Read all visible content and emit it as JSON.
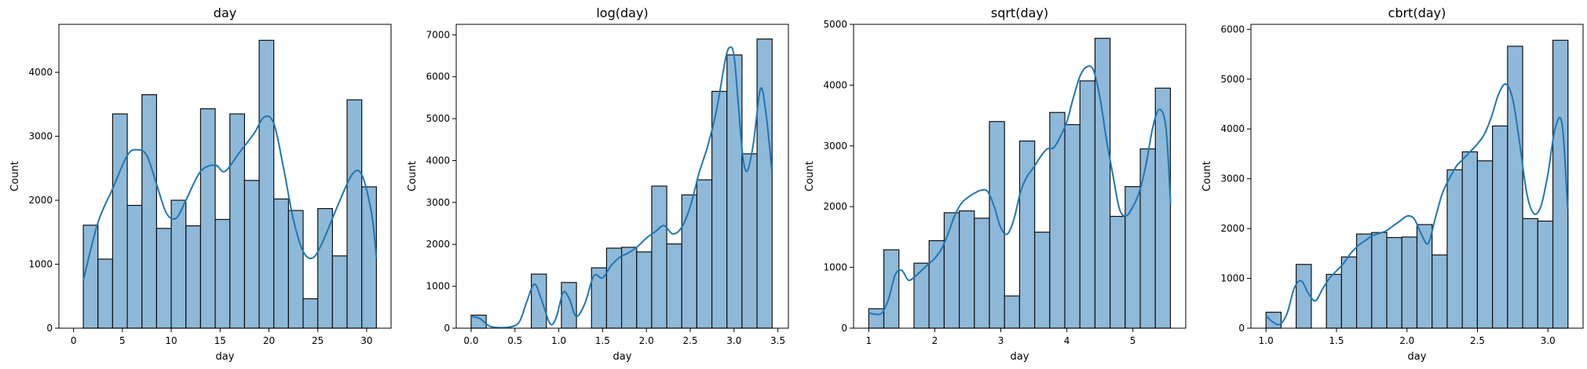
{
  "colors": {
    "bar_fill": "#8fb9d9",
    "bar_edge": "#111111",
    "kde_line": "#1f77b4",
    "frame": "#000000"
  },
  "chart_data": [
    {
      "type": "bar",
      "title": "day",
      "xlabel": "day",
      "ylabel": "Count",
      "xlim": [
        -1.5,
        32.5
      ],
      "ylim": [
        0,
        4750
      ],
      "xticks": [
        0,
        5,
        10,
        15,
        20,
        25,
        30
      ],
      "yticks": [
        0,
        1000,
        2000,
        3000,
        4000
      ],
      "bin_edges": [
        1.0,
        2.5,
        4.0,
        5.5,
        7.0,
        8.5,
        10.0,
        11.5,
        13.0,
        14.5,
        16.0,
        17.5,
        19.0,
        20.5,
        22.0,
        23.5,
        25.0,
        26.5,
        28.0,
        29.5,
        31.0
      ],
      "values": [
        1610,
        1080,
        3350,
        1920,
        3650,
        1560,
        2000,
        1600,
        3430,
        1700,
        3350,
        2310,
        4500,
        2020,
        1840,
        460,
        1870,
        1130,
        3570,
        2210
      ],
      "kde": {
        "x": [
          1,
          2.5,
          4,
          5.5,
          6.5,
          7.5,
          8.5,
          9.5,
          10.5,
          11.5,
          13,
          14.5,
          15.5,
          17,
          18.5,
          19.5,
          20.5,
          21.5,
          22.5,
          23.5,
          24.5,
          25.5,
          27,
          28.5,
          29.5,
          30.5,
          31
        ],
        "y": [
          750,
          1650,
          2180,
          2700,
          2790,
          2700,
          2250,
          1800,
          1720,
          2000,
          2450,
          2550,
          2450,
          2750,
          3050,
          3300,
          3200,
          2500,
          1700,
          1200,
          1100,
          1350,
          1900,
          2400,
          2400,
          1800,
          1100
        ]
      }
    },
    {
      "type": "bar",
      "title": "log(day)",
      "xlabel": "day",
      "ylabel": "Count",
      "xlim": [
        -0.17,
        3.62
      ],
      "ylim": [
        0,
        7250
      ],
      "xticks": [
        0.0,
        0.5,
        1.0,
        1.5,
        2.0,
        2.5,
        3.0,
        3.5
      ],
      "xtick_labels": [
        "0.0",
        "0.5",
        "1.0",
        "1.5",
        "2.0",
        "2.5",
        "3.0",
        "3.5"
      ],
      "yticks": [
        0,
        1000,
        2000,
        3000,
        4000,
        5000,
        6000,
        7000
      ],
      "bin_edges": [
        0.0,
        0.1717,
        0.3434,
        0.5151,
        0.6868,
        0.8585,
        1.0302,
        1.2019,
        1.3736,
        1.5453,
        1.717,
        1.8887,
        2.0604,
        2.2321,
        2.4038,
        2.5755,
        2.7472,
        2.9189,
        3.0906,
        3.2623,
        3.434
      ],
      "values": [
        310,
        0,
        0,
        0,
        1290,
        0,
        1090,
        0,
        1440,
        1910,
        1930,
        1820,
        3390,
        2010,
        3180,
        3540,
        5650,
        6520,
        4160,
        6900
      ],
      "kde": {
        "x": [
          0.0,
          0.1,
          0.2,
          0.3,
          0.45,
          0.55,
          0.63,
          0.72,
          0.8,
          0.9,
          0.97,
          1.05,
          1.12,
          1.2,
          1.3,
          1.4,
          1.5,
          1.6,
          1.7,
          1.8,
          1.9,
          2.0,
          2.1,
          2.2,
          2.3,
          2.4,
          2.5,
          2.6,
          2.7,
          2.8,
          2.9,
          2.95,
          3.0,
          3.05,
          3.1,
          3.15,
          3.22,
          3.3,
          3.36,
          3.43
        ],
        "y": [
          280,
          230,
          60,
          15,
          30,
          150,
          600,
          1050,
          700,
          110,
          250,
          850,
          700,
          280,
          600,
          1250,
          1200,
          1500,
          1700,
          1800,
          1950,
          2150,
          2300,
          2450,
          2250,
          2400,
          2900,
          3700,
          4350,
          5200,
          6400,
          6700,
          6500,
          5300,
          4100,
          3750,
          4400,
          5700,
          5200,
          3800
        ]
      }
    },
    {
      "type": "bar",
      "title": "sqrt(day)",
      "xlabel": "day",
      "ylabel": "Count",
      "xlim": [
        0.77,
        5.8
      ],
      "ylim": [
        0,
        5000
      ],
      "xticks": [
        1,
        2,
        3,
        4,
        5
      ],
      "yticks": [
        0,
        1000,
        2000,
        3000,
        4000,
        5000
      ],
      "bin_edges": [
        1.0,
        1.2284,
        1.4568,
        1.6852,
        1.9136,
        2.142,
        2.3704,
        2.5988,
        2.8272,
        3.0556,
        3.284,
        3.5124,
        3.7408,
        3.9692,
        4.1976,
        4.426,
        4.6544,
        4.8828,
        5.1112,
        5.3396,
        5.568
      ],
      "values": [
        320,
        1290,
        0,
        1070,
        1440,
        1900,
        1930,
        1810,
        3400,
        530,
        3080,
        1580,
        3550,
        3350,
        4070,
        4770,
        1840,
        2330,
        2950,
        3950
      ],
      "kde": {
        "x": [
          1.0,
          1.1,
          1.2,
          1.3,
          1.4,
          1.5,
          1.6,
          1.7,
          1.8,
          1.9,
          2.0,
          2.1,
          2.2,
          2.3,
          2.4,
          2.5,
          2.6,
          2.7,
          2.8,
          2.9,
          3.0,
          3.1,
          3.2,
          3.3,
          3.4,
          3.5,
          3.6,
          3.7,
          3.8,
          3.9,
          4.0,
          4.1,
          4.2,
          4.3,
          4.4,
          4.5,
          4.6,
          4.7,
          4.8,
          4.9,
          5.0,
          5.1,
          5.2,
          5.3,
          5.4,
          5.5,
          5.57
        ],
        "y": [
          250,
          230,
          250,
          480,
          880,
          950,
          790,
          850,
          950,
          1050,
          1150,
          1300,
          1550,
          1850,
          2050,
          2150,
          2220,
          2270,
          2250,
          2000,
          1650,
          1550,
          1800,
          2250,
          2500,
          2650,
          2820,
          2950,
          2970,
          3150,
          3400,
          3800,
          4150,
          4300,
          4250,
          3800,
          3100,
          2500,
          1950,
          1850,
          2000,
          2250,
          2700,
          3300,
          3600,
          3300,
          2050
        ]
      }
    },
    {
      "type": "bar",
      "title": "cbrt(day)",
      "xlabel": "day",
      "ylabel": "Count",
      "xlim": [
        0.893,
        3.249
      ],
      "ylim": [
        0,
        6100
      ],
      "xticks": [
        1.0,
        1.5,
        2.0,
        2.5,
        3.0
      ],
      "xtick_labels": [
        "1.0",
        "1.5",
        "2.0",
        "2.5",
        "3.0"
      ],
      "yticks": [
        0,
        1000,
        2000,
        3000,
        4000,
        5000,
        6000
      ],
      "bin_edges": [
        1.0,
        1.1071,
        1.2142,
        1.3213,
        1.4284,
        1.5355,
        1.6426,
        1.7497,
        1.8568,
        1.9639,
        2.071,
        2.1781,
        2.2852,
        2.3923,
        2.4994,
        2.6065,
        2.7136,
        2.8207,
        2.9278,
        3.0349,
        3.142
      ],
      "values": [
        320,
        0,
        1280,
        0,
        1080,
        1430,
        1890,
        1920,
        1820,
        1830,
        2080,
        1470,
        3180,
        3540,
        3360,
        4060,
        5660,
        2200,
        2150,
        5780
      ],
      "kde": {
        "x": [
          1.0,
          1.05,
          1.1,
          1.15,
          1.2,
          1.25,
          1.3,
          1.35,
          1.4,
          1.45,
          1.5,
          1.55,
          1.6,
          1.65,
          1.7,
          1.75,
          1.8,
          1.85,
          1.9,
          1.95,
          2.0,
          2.05,
          2.1,
          2.15,
          2.2,
          2.25,
          2.3,
          2.35,
          2.4,
          2.45,
          2.5,
          2.55,
          2.6,
          2.65,
          2.7,
          2.75,
          2.8,
          2.85,
          2.9,
          2.95,
          3.0,
          3.05,
          3.1,
          3.14
        ],
        "y": [
          250,
          120,
          80,
          300,
          800,
          950,
          700,
          550,
          780,
          1000,
          1150,
          1300,
          1500,
          1650,
          1750,
          1850,
          1900,
          1950,
          2050,
          2150,
          2250,
          2200,
          1900,
          1700,
          2200,
          2700,
          3000,
          3250,
          3400,
          3550,
          3700,
          3900,
          4250,
          4700,
          4900,
          4600,
          3700,
          2700,
          2300,
          2450,
          3100,
          4000,
          4100,
          2400
        ]
      }
    }
  ]
}
